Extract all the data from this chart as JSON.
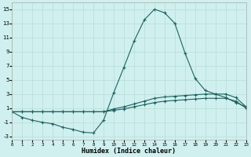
{
  "xlabel": "Humidex (Indice chaleur)",
  "xlim": [
    0,
    23
  ],
  "ylim": [
    -3.5,
    16
  ],
  "xticks": [
    0,
    1,
    2,
    3,
    4,
    5,
    6,
    7,
    8,
    9,
    10,
    11,
    12,
    13,
    14,
    15,
    16,
    17,
    18,
    19,
    20,
    21,
    22,
    23
  ],
  "yticks": [
    -3,
    -1,
    1,
    3,
    5,
    7,
    9,
    11,
    13,
    15
  ],
  "bg_color": "#cff0ee",
  "grid_color": "#b8dcd8",
  "line_color": "#206060",
  "peak_x": [
    0,
    1,
    2,
    3,
    4,
    5,
    6,
    7,
    8,
    9,
    10,
    11,
    12,
    13,
    14,
    15,
    16,
    17,
    18,
    19,
    20,
    21,
    22,
    23
  ],
  "peak_y": [
    0.5,
    -0.3,
    -0.7,
    -1.0,
    -1.2,
    -1.7,
    -2.0,
    -2.4,
    -2.5,
    -0.7,
    3.2,
    6.8,
    10.5,
    13.5,
    15.0,
    14.5,
    13.0,
    8.8,
    5.2,
    3.5,
    3.0,
    2.5,
    1.8,
    1.2
  ],
  "upper_x": [
    0,
    1,
    2,
    3,
    4,
    5,
    6,
    7,
    8,
    9,
    10,
    11,
    12,
    13,
    14,
    15,
    16,
    17,
    18,
    19,
    20,
    21,
    22,
    23
  ],
  "upper_y": [
    0.5,
    0.5,
    0.5,
    0.5,
    0.5,
    0.5,
    0.5,
    0.5,
    0.5,
    0.5,
    0.9,
    1.2,
    1.6,
    2.0,
    2.4,
    2.6,
    2.7,
    2.8,
    2.9,
    3.0,
    3.0,
    3.0,
    2.5,
    1.2
  ],
  "lower_x": [
    0,
    1,
    2,
    3,
    4,
    5,
    6,
    7,
    8,
    9,
    10,
    11,
    12,
    13,
    14,
    15,
    16,
    17,
    18,
    19,
    20,
    21,
    22,
    23
  ],
  "lower_y": [
    0.5,
    0.5,
    0.5,
    0.5,
    0.5,
    0.5,
    0.5,
    0.5,
    0.5,
    0.5,
    0.7,
    0.9,
    1.2,
    1.5,
    1.8,
    2.0,
    2.1,
    2.2,
    2.3,
    2.4,
    2.4,
    2.4,
    2.0,
    1.0
  ]
}
